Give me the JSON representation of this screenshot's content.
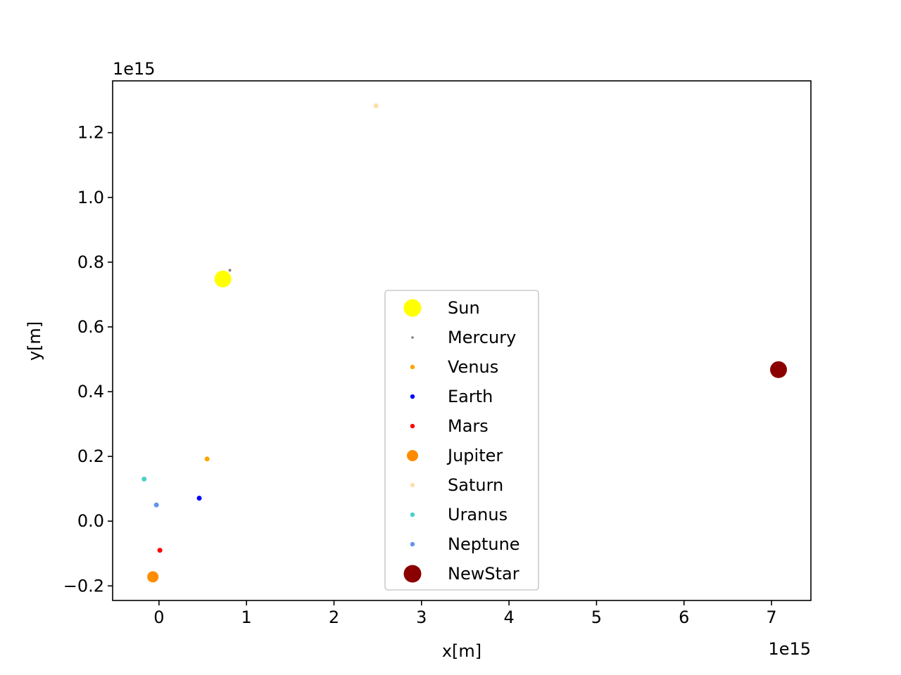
{
  "chart_data": {
    "type": "scatter",
    "title": "",
    "xlabel": "x[m]",
    "ylabel": "y[m]",
    "x_offset_label": "1e15",
    "y_offset_label": "1e15",
    "xlim": [
      -0.53,
      7.45
    ],
    "ylim": [
      -0.245,
      1.36
    ],
    "x_ticks": [
      0,
      1,
      2,
      3,
      4,
      5,
      6,
      7
    ],
    "x_tick_labels": [
      "0",
      "1",
      "2",
      "3",
      "4",
      "5",
      "6",
      "7"
    ],
    "y_ticks": [
      -0.2,
      0.0,
      0.2,
      0.4,
      0.6,
      0.8,
      1.0,
      1.2
    ],
    "y_tick_labels": [
      "−0.2",
      "0.0",
      "0.2",
      "0.4",
      "0.6",
      "0.8",
      "1.0",
      "1.2"
    ],
    "grid": false,
    "legend_position": "lower-center",
    "series": [
      {
        "name": "Sun",
        "color": "#ffff00",
        "size": "large",
        "x": 0.73,
        "y": 0.748
      },
      {
        "name": "Mercury",
        "color": "#808080",
        "size": "tiny",
        "x": 0.81,
        "y": 0.775
      },
      {
        "name": "Venus",
        "color": "#ffa500",
        "size": "small",
        "x": 0.55,
        "y": 0.192
      },
      {
        "name": "Earth",
        "color": "#0000ff",
        "size": "small",
        "x": 0.46,
        "y": 0.071
      },
      {
        "name": "Mars",
        "color": "#ff0000",
        "size": "small",
        "x": 0.01,
        "y": -0.09
      },
      {
        "name": "Jupiter",
        "color": "#ff8c00",
        "size": "medium",
        "x": -0.07,
        "y": -0.172
      },
      {
        "name": "Saturn",
        "color": "#ffdead",
        "size": "small",
        "x": 2.48,
        "y": 1.283
      },
      {
        "name": "Uranus",
        "color": "#48d1cc",
        "size": "small",
        "x": -0.17,
        "y": 0.13
      },
      {
        "name": "Neptune",
        "color": "#6495ed",
        "size": "small",
        "x": -0.03,
        "y": 0.05
      },
      {
        "name": "NewStar",
        "color": "#8b0000",
        "size": "large",
        "x": 7.08,
        "y": 0.468
      }
    ]
  }
}
